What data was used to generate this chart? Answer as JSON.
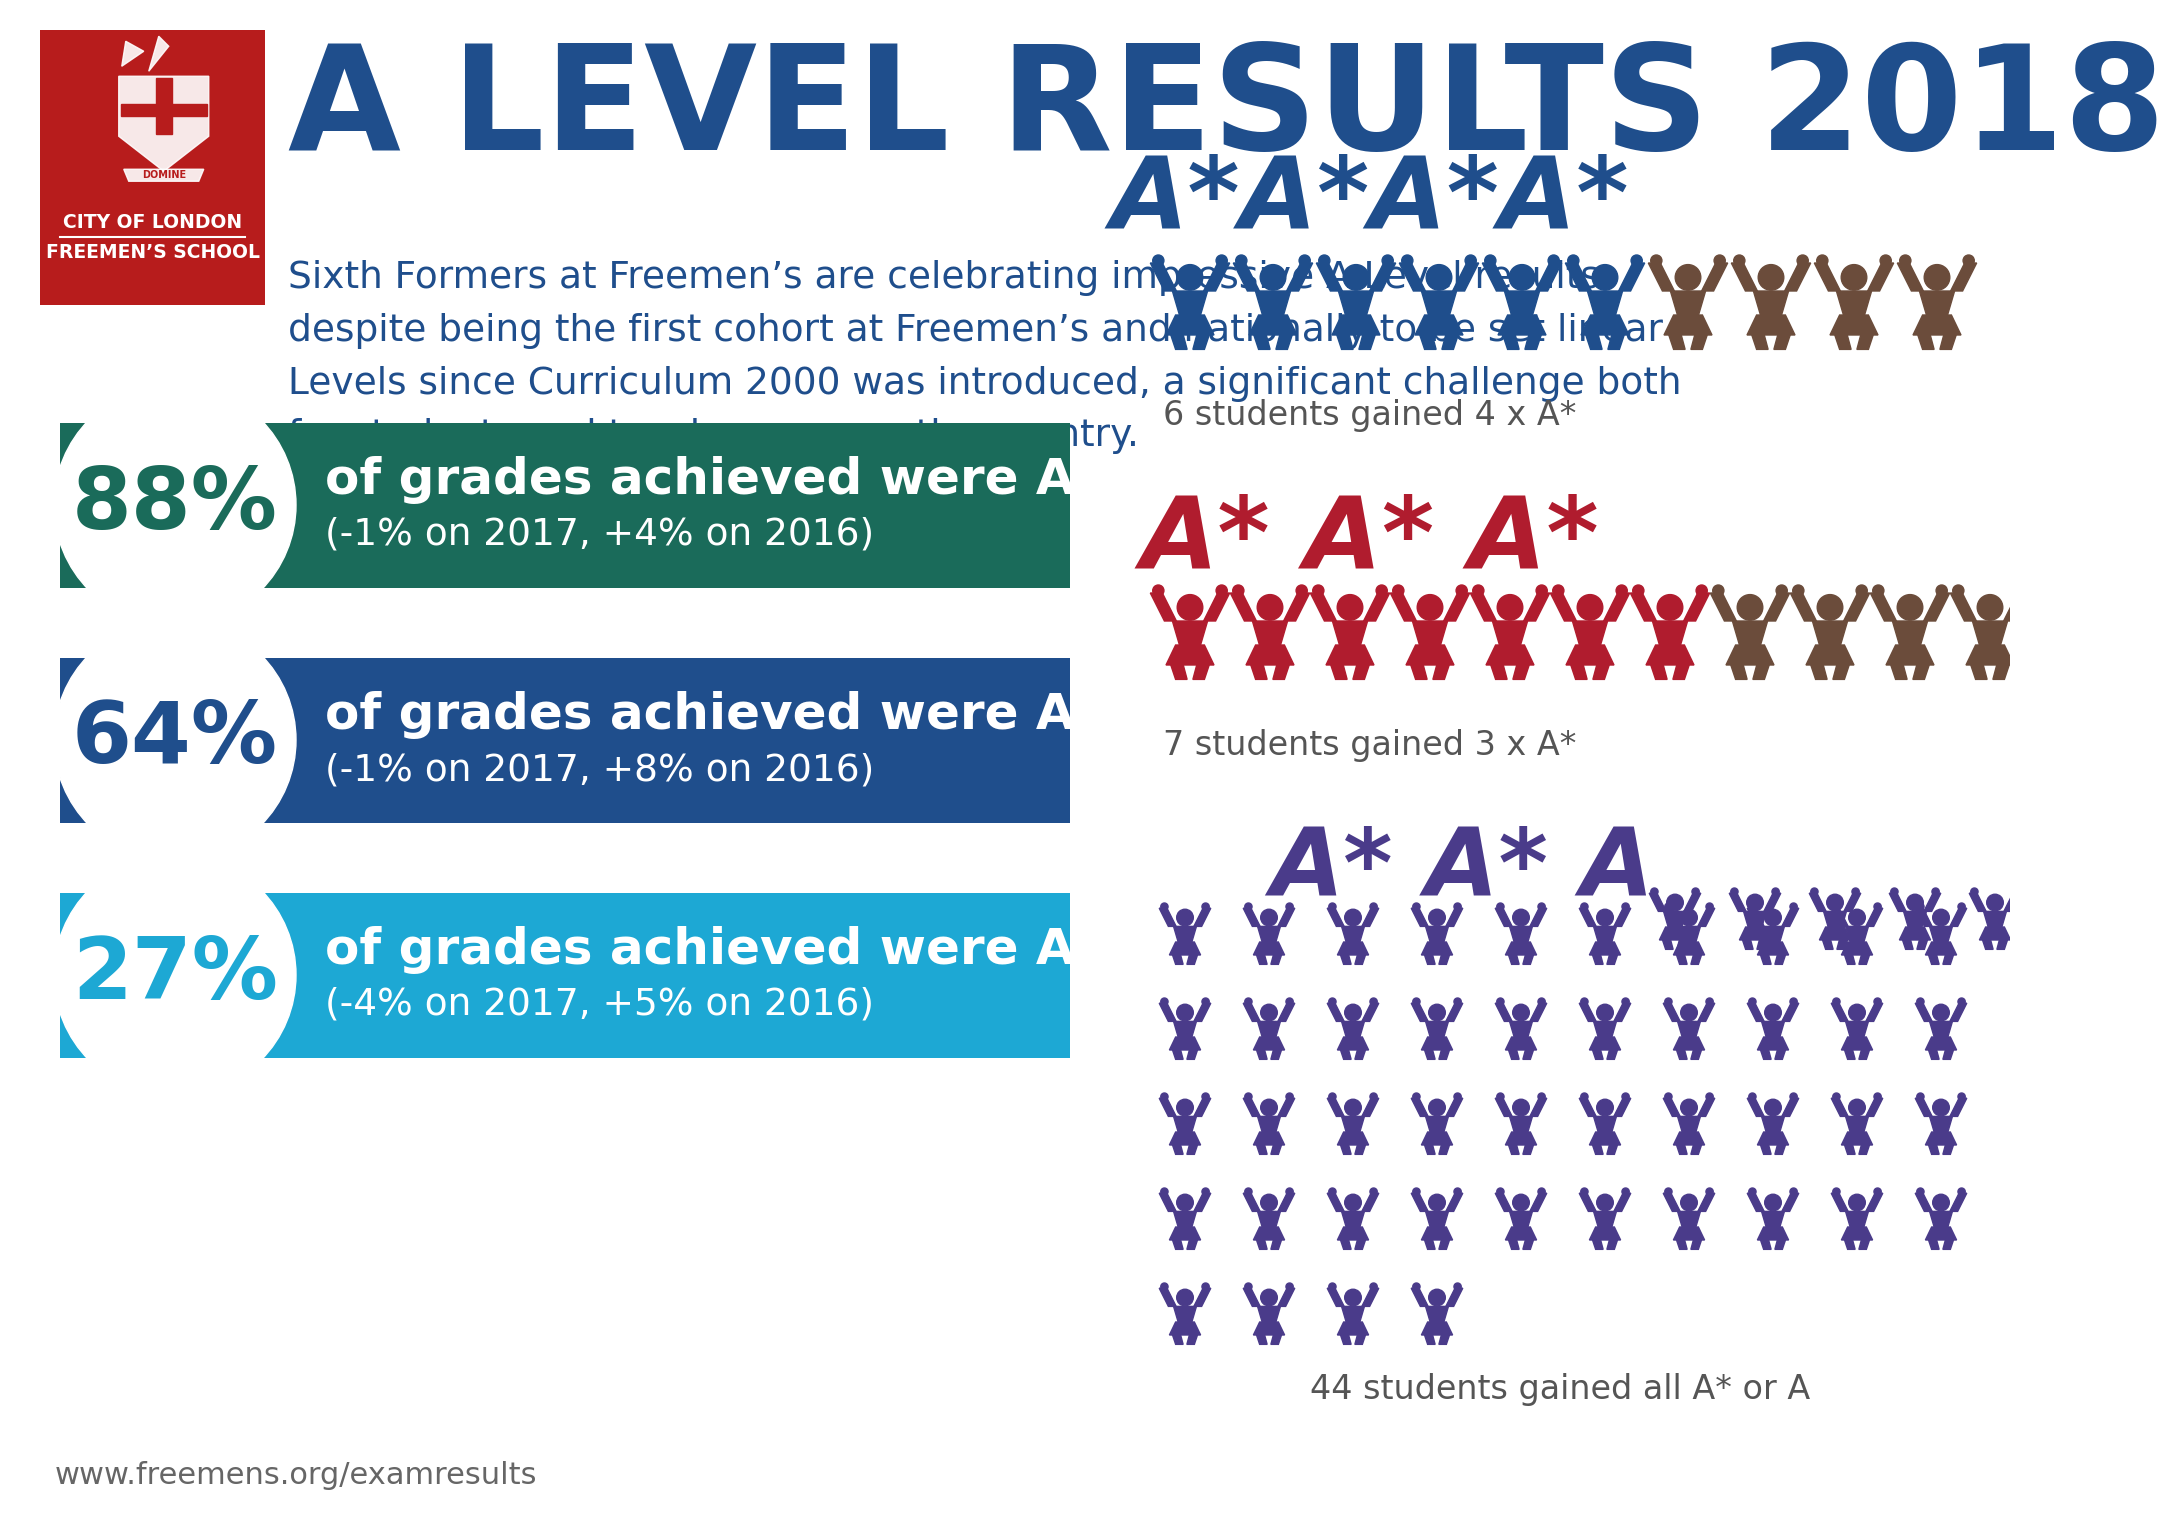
{
  "title": "A LEVEL RESULTS 2018",
  "subtitle": "Sixth Formers at Freemen’s are celebrating impressive A Level results\ndespite being the first cohort at Freemen’s and nationally to be set linear A\nLevels since Curriculum 2000 was introduced, a significant challenge both\nfor students and teachers across the country.",
  "school_name_line1": "CITY",
  "school_name_line1b": "OF LONDON",
  "school_name_line2": "FREEMEN’S SCHOOL",
  "stats": [
    {
      "pct": "88%",
      "main_text": "of grades achieved were A* to B",
      "sub_text": "(-1% on 2017, +4% on 2016)",
      "bar_color": "#1a6b5a",
      "text_color": "#ffffff"
    },
    {
      "pct": "64%",
      "main_text": "of grades achieved were A*/A",
      "sub_text": "(-1% on 2017, +8% on 2016)",
      "bar_color": "#1f4e8c",
      "text_color": "#ffffff"
    },
    {
      "pct": "27%",
      "main_text": "of grades achieved were A*",
      "sub_text": "(-4% on 2017, +5% on 2016)",
      "bar_color": "#1da8d4",
      "text_color": "#ffffff"
    }
  ],
  "panel1_label": "A*A*A*A*",
  "panel1_label_color": "#1f4e8c",
  "panel1_caption": "6 students gained 4 x A*",
  "panel1_n_primary": 6,
  "panel1_n_secondary": 4,
  "panel1_primary_color": "#1f4e8c",
  "panel1_secondary_color": "#6b4c3b",
  "panel2_label": "A* A* A*",
  "panel2_label_color": "#b01c2e",
  "panel2_caption": "7 students gained 3 x A*",
  "panel2_n_primary": 7,
  "panel2_n_secondary": 4,
  "panel2_primary_color": "#b01c2e",
  "panel2_secondary_color": "#6b4c3b",
  "panel3_label": "A* A* A",
  "panel3_label_color": "#4a3b8a",
  "panel3_caption": "44 students gained all A* or A",
  "panel3_n_total": 44,
  "panel3_color": "#4a3b8a",
  "footer_text": "www.freemens.org/examresults",
  "bg_color": "#ffffff",
  "logo_bg_color": "#b71c1c",
  "dark_blue": "#1f4e8c",
  "title_color": "#1f4e8c",
  "caption_color": "#555555"
}
